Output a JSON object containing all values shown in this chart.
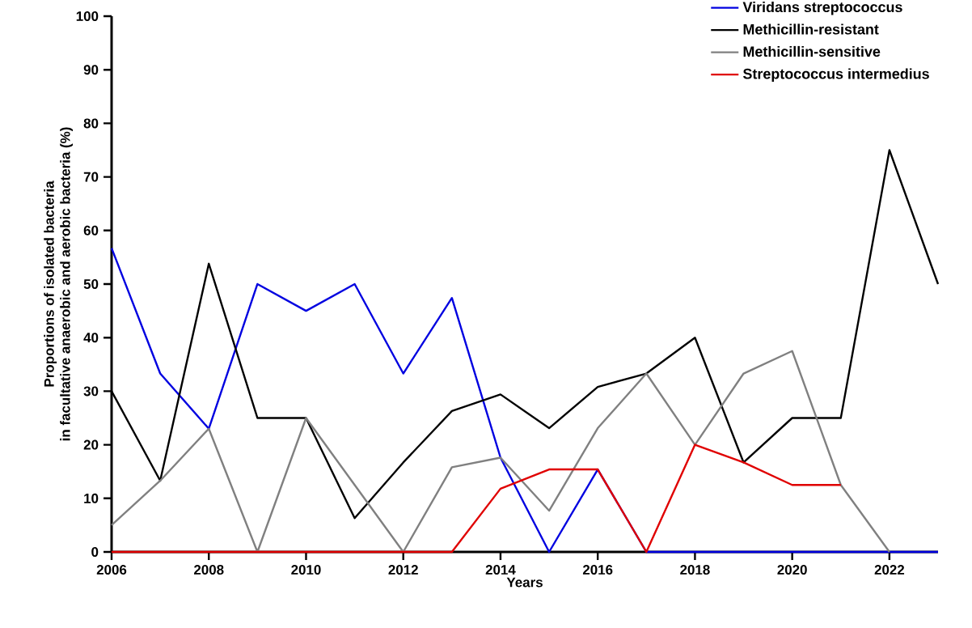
{
  "chart_data": {
    "type": "line",
    "xlabel": "Years",
    "ylabel": "Proportions of isolated bacteria\nin facultative anaerobic  and aerobic bacteria (%)",
    "x": [
      2006,
      2007,
      2008,
      2009,
      2010,
      2011,
      2012,
      2013,
      2014,
      2015,
      2016,
      2017,
      2018,
      2019,
      2020,
      2021,
      2022,
      2023
    ],
    "xlim": [
      2006,
      2023
    ],
    "xticks": [
      2006,
      2008,
      2010,
      2012,
      2014,
      2016,
      2018,
      2020,
      2022
    ],
    "ylim": [
      0,
      100
    ],
    "yticks": [
      0,
      10,
      20,
      30,
      40,
      50,
      60,
      70,
      80,
      90,
      100
    ],
    "grid": false,
    "legend": "top right",
    "marker": "none",
    "line_style": "solid",
    "series": [
      {
        "name": "Viridans streptococcus",
        "color": "#0000e0",
        "values": [
          56.7,
          33.3,
          23,
          50,
          45,
          50,
          33.3,
          47.4,
          17.6,
          0,
          15.4,
          0,
          0,
          0,
          0,
          0,
          0,
          0
        ]
      },
      {
        "name": "Methicillin-resistant",
        "color": "#000000",
        "values": [
          30,
          13.3,
          53.8,
          25,
          25,
          6.3,
          16.7,
          26.3,
          29.4,
          23.1,
          30.8,
          33.3,
          40,
          16.7,
          25,
          25,
          75,
          50
        ]
      },
      {
        "name": "Methicillin-sensitive",
        "color": "#808080",
        "values": [
          5,
          13.3,
          23,
          0,
          25,
          12.5,
          0,
          15.8,
          17.6,
          7.7,
          23.1,
          33.3,
          20,
          33.3,
          37.5,
          12.5,
          0,
          null
        ]
      },
      {
        "name": "Streptococcus intermedius",
        "color": "#e00000",
        "values": [
          0,
          0,
          0,
          0,
          0,
          0,
          0,
          0,
          11.8,
          15.4,
          15.4,
          0,
          20,
          16.7,
          12.5,
          12.5,
          null,
          null
        ]
      }
    ]
  }
}
